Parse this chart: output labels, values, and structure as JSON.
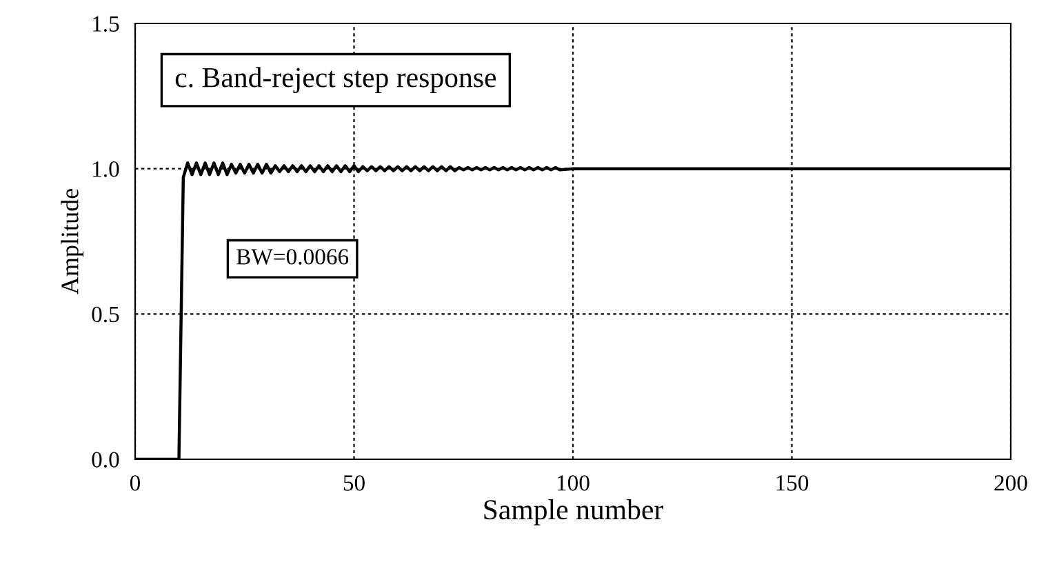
{
  "chart_data": {
    "type": "line",
    "title": "c. Band-reject step response",
    "xlabel": "Sample number",
    "ylabel": "Amplitude",
    "annotations": [
      "BW=0.0066"
    ],
    "x": [
      0,
      10,
      11,
      12,
      13,
      14,
      15,
      16,
      17,
      18,
      19,
      20,
      21,
      22,
      23,
      24,
      25,
      26,
      27,
      28,
      29,
      30,
      31,
      32,
      33,
      34,
      35,
      36,
      37,
      38,
      39,
      40,
      41,
      42,
      43,
      44,
      45,
      46,
      47,
      48,
      49,
      50,
      51,
      52,
      53,
      54,
      55,
      56,
      57,
      58,
      59,
      60,
      61,
      62,
      63,
      64,
      65,
      66,
      67,
      68,
      69,
      70,
      71,
      72,
      73,
      74,
      75,
      76,
      77,
      78,
      79,
      80,
      81,
      82,
      83,
      84,
      85,
      86,
      87,
      88,
      89,
      90,
      91,
      92,
      93,
      94,
      95,
      96,
      97,
      100,
      200
    ],
    "series": [
      {
        "color": "#000000",
        "values": [
          0,
          0,
          0.97,
          1.02,
          0.98,
          1.02,
          0.98,
          1.02,
          0.98,
          1.02,
          0.98,
          1.02,
          0.98,
          1.015,
          0.985,
          1.015,
          0.985,
          1.015,
          0.985,
          1.015,
          0.985,
          1.015,
          0.985,
          1.01,
          0.99,
          1.01,
          0.99,
          1.01,
          0.99,
          1.01,
          0.99,
          1.01,
          0.99,
          1.01,
          0.99,
          1.01,
          0.99,
          1.01,
          0.99,
          1.01,
          0.99,
          1.01,
          0.99,
          1.007,
          0.993,
          1.007,
          0.993,
          1.007,
          0.993,
          1.007,
          0.993,
          1.007,
          0.993,
          1.007,
          0.993,
          1.007,
          0.993,
          1.007,
          0.993,
          1.007,
          0.993,
          1.007,
          0.993,
          1.007,
          0.993,
          1.004,
          0.996,
          1.004,
          0.996,
          1.004,
          0.996,
          1.004,
          0.996,
          1.004,
          0.996,
          1.004,
          0.996,
          1.004,
          0.996,
          1.004,
          0.996,
          1.004,
          0.996,
          1.004,
          0.996,
          1.004,
          0.996,
          1.004,
          0.996,
          1.0,
          1.0
        ]
      }
    ],
    "xlim": [
      0,
      200
    ],
    "ylim": [
      0,
      1.5
    ],
    "xticks": [
      0,
      50,
      100,
      150,
      200
    ],
    "yticks": [
      {
        "value": 0,
        "label": "0.0"
      },
      {
        "value": 0.5,
        "label": "0.5"
      },
      {
        "value": 1,
        "label": "1.0"
      },
      {
        "value": 1.5,
        "label": "1.5"
      }
    ],
    "grid": true,
    "line_style": "solid",
    "marker": "none",
    "legend": false
  }
}
